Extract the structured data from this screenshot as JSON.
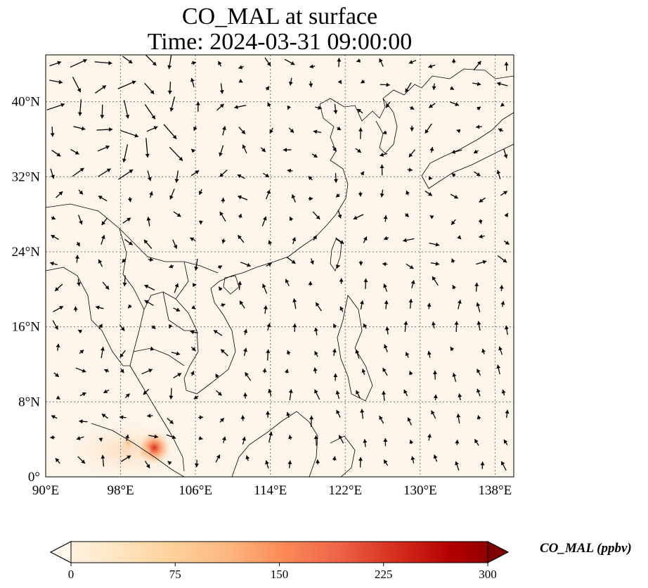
{
  "title": {
    "line1": "CO_MAL at surface",
    "line2": "Time: 2024-03-31 09:00:00"
  },
  "map": {
    "projection": "PlateCarree",
    "lon_range": [
      90,
      140
    ],
    "lat_range": [
      0,
      45
    ],
    "lon_ticks": [
      "90°E",
      "98°E",
      "106°E",
      "114°E",
      "122°E",
      "130°E",
      "138°E"
    ],
    "lat_ticks": [
      "0°",
      "8°N",
      "16°N",
      "24°N",
      "32°N",
      "40°N"
    ],
    "gridlines": true,
    "background_value_ppbv": 0,
    "hotspots": [
      {
        "lon": 101.6,
        "lat": 3.1,
        "level_ppbv": 210
      },
      {
        "lon": 98.8,
        "lat": 3.6,
        "level_ppbv": 70
      },
      {
        "lon": 100.6,
        "lat": 2.6,
        "level_ppbv": 45
      }
    ],
    "wind_field": "surface wind vectors (quiver)"
  },
  "colorbar": {
    "label": "CO_MAL (ppbv)",
    "cmap": "OrRd",
    "ticks": [
      "0",
      "75",
      "150",
      "225",
      "300"
    ],
    "range": [
      0,
      300
    ],
    "extend": "both",
    "colors": [
      "#fff7ec",
      "#fee8c8",
      "#fdd49e",
      "#fdbb84",
      "#fc8d59",
      "#ef6548",
      "#d7301f",
      "#b30000",
      "#7f0000"
    ]
  }
}
